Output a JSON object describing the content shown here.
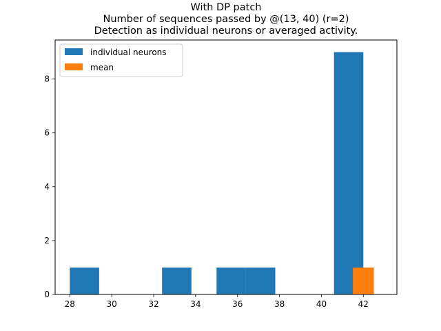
{
  "chart_data": {
    "type": "bar",
    "title": "With DP patch",
    "subtitle_lines": [
      "Number of sequences passed by @(13, 40) (r=2)",
      "Detection as individual neurons or averaged activity."
    ],
    "xlabel": "",
    "ylabel": "",
    "xlim": [
      27.3,
      43.6
    ],
    "ylim": [
      0,
      9.45
    ],
    "x_ticks": [
      "28",
      "30",
      "32",
      "34",
      "36",
      "38",
      "40",
      "42"
    ],
    "y_ticks": [
      "0",
      "2",
      "4",
      "6",
      "8"
    ],
    "grid": false,
    "legend_position": "upper-left",
    "series": [
      {
        "name": "individual neurons",
        "color": "#1f77b4",
        "bins": [
          {
            "x0": 28.0,
            "x1": 29.4,
            "count": 1
          },
          {
            "x0": 32.4,
            "x1": 33.8,
            "count": 1
          },
          {
            "x0": 35.0,
            "x1": 36.4,
            "count": 1
          },
          {
            "x0": 36.4,
            "x1": 37.8,
            "count": 1
          },
          {
            "x0": 40.6,
            "x1": 42.0,
            "count": 9
          }
        ]
      },
      {
        "name": "mean",
        "color": "#ff7f0e",
        "bins": [
          {
            "x0": 41.5,
            "x1": 42.5,
            "count": 1
          }
        ]
      }
    ]
  }
}
